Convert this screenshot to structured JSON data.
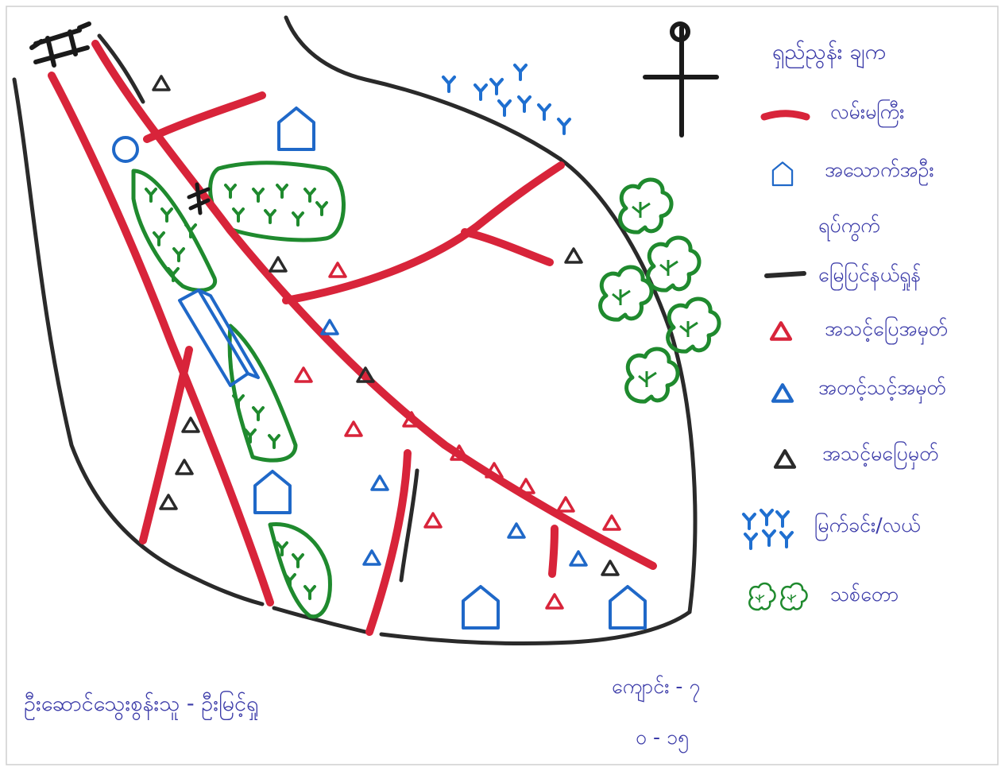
{
  "legend": {
    "title": "ရှည်ညွန်း ချက",
    "items": [
      {
        "icon": "main-road-line",
        "label": "လမ်းမကြီး"
      },
      {
        "icon": "house-icon",
        "label": "အသောက်အဦး"
      },
      {
        "icon": "black-line",
        "label_line1": "ရပ်ကွက်",
        "label_line2": "မြေပြင်နယ်ရှုန်"
      },
      {
        "icon": "red-triangle-icon",
        "label": "အသင့်ပြေအမှတ်"
      },
      {
        "icon": "blue-triangle-icon",
        "label": "အတင့်သင့်အမှတ်"
      },
      {
        "icon": "black-triangle-icon",
        "label": "အသင့်မပြေမှတ်"
      },
      {
        "icon": "grass-icon",
        "label": "မြက်ခင်း/လယ်"
      },
      {
        "icon": "forest-icon",
        "label": "သစ်တော"
      }
    ]
  },
  "footer": {
    "caption": "ဦးဆောင်သွေးစွန်းသူ - ဦးမြင့်ရှု",
    "scale_line1": "ကျောင်း - ၇",
    "scale_line2": "၀ - ၁၅"
  },
  "colors": {
    "road": "#d8243a",
    "boundary": "#2a2a2a",
    "house": "#1f68c8",
    "green": "#1f8a2e",
    "grass": "#1f6fd0",
    "text": "#3a3aa8",
    "paper": "#ffffff"
  }
}
